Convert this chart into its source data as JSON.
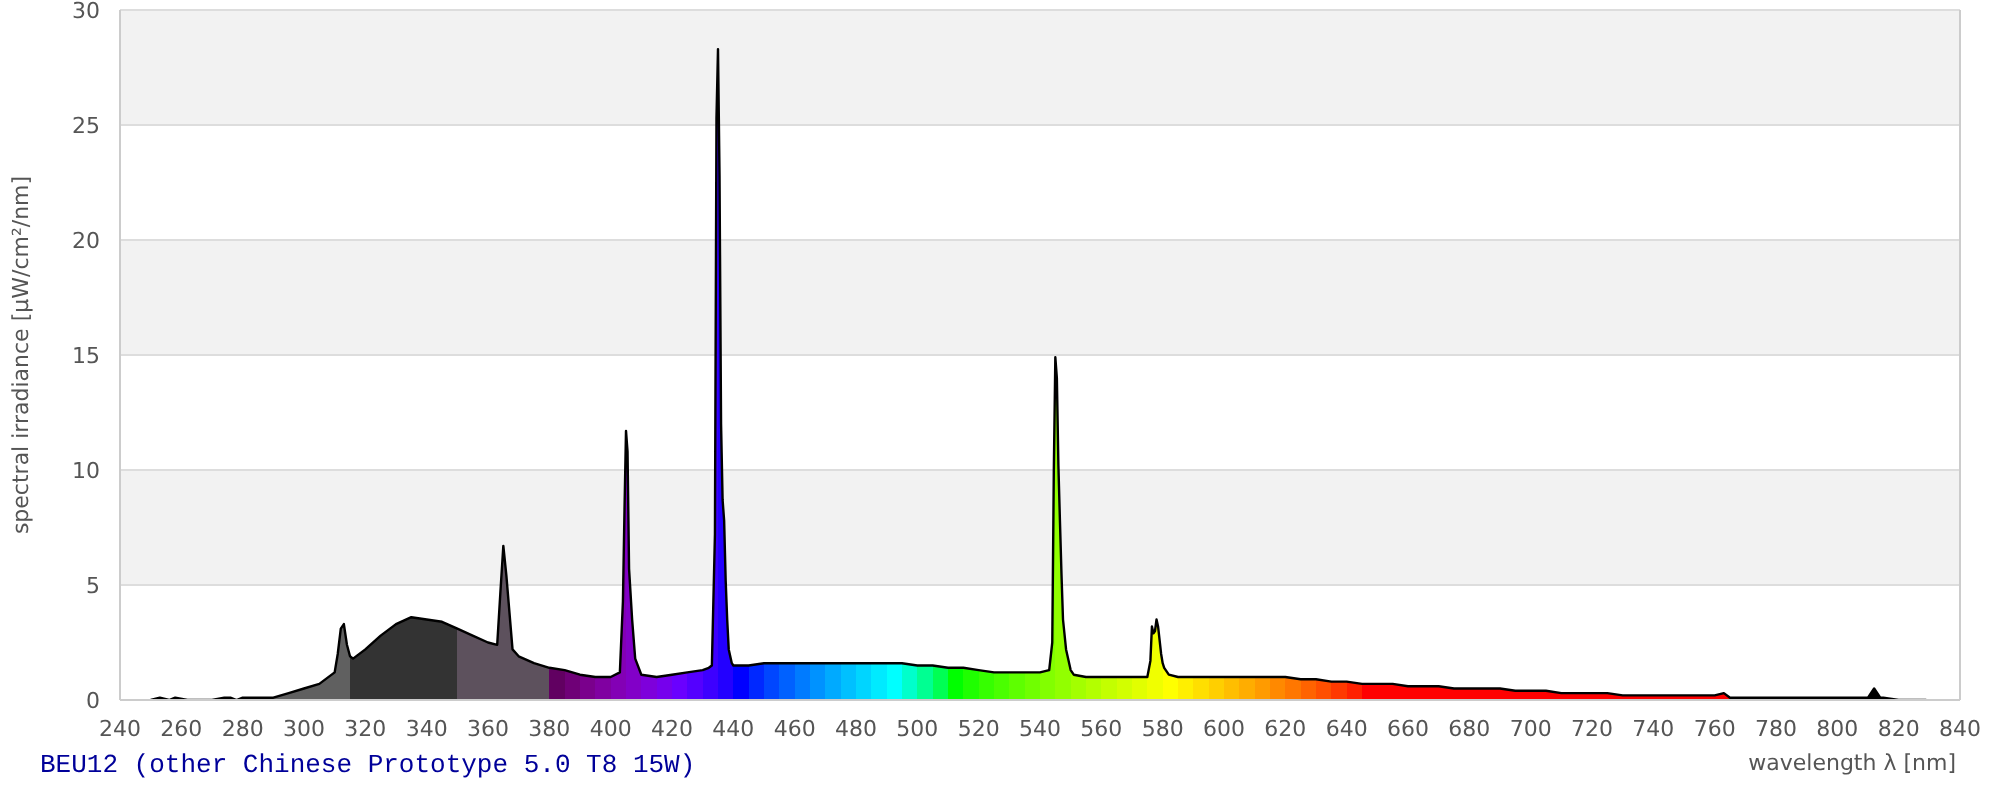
{
  "chart_data": {
    "type": "area",
    "title": "BEU12 (other Chinese Prototype 5.0 T8 15W)",
    "xlabel": "wavelength λ [nm]",
    "ylabel": "spectral irradiance [µW/cm²/nm]",
    "x": [
      250,
      253,
      256,
      258,
      262,
      270,
      274,
      276,
      278,
      280,
      283,
      286,
      290,
      295,
      300,
      305,
      310,
      311,
      312,
      313,
      314,
      315,
      316,
      320,
      325,
      330,
      335,
      340,
      345,
      350,
      355,
      360,
      363,
      364,
      365,
      366,
      367,
      368,
      370,
      375,
      380,
      385,
      390,
      395,
      400,
      403,
      404,
      404.5,
      405,
      405.5,
      406,
      407,
      408,
      410,
      415,
      420,
      425,
      430,
      432,
      433,
      434,
      434.5,
      435,
      435.5,
      436,
      436.5,
      437,
      437.5,
      438,
      438.5,
      439.5,
      440,
      441,
      445,
      450,
      455,
      460,
      465,
      470,
      475,
      480,
      485,
      490,
      495,
      500,
      505,
      510,
      515,
      520,
      525,
      530,
      535,
      540,
      543,
      544,
      544.5,
      545,
      545.5,
      546,
      546.5,
      547,
      547.5,
      548.5,
      550,
      551,
      555,
      560,
      565,
      570,
      575,
      576,
      576.5,
      577,
      577.5,
      578,
      578.5,
      579,
      579.5,
      580,
      580.5,
      582,
      585,
      590,
      595,
      600,
      605,
      610,
      615,
      620,
      625,
      630,
      635,
      640,
      645,
      650,
      655,
      660,
      665,
      670,
      675,
      680,
      685,
      690,
      695,
      700,
      705,
      710,
      715,
      720,
      725,
      730,
      735,
      740,
      745,
      750,
      755,
      760,
      763,
      765,
      770,
      775,
      780,
      785,
      790,
      795,
      800,
      805,
      810,
      812,
      814,
      815,
      820,
      825,
      829
    ],
    "values": [
      0,
      0.1,
      0,
      0.1,
      0,
      0,
      0.1,
      0.1,
      0,
      0.1,
      0.1,
      0.1,
      0.1,
      0.3,
      0.5,
      0.7,
      1.2,
      2.0,
      3.1,
      3.3,
      2.4,
      1.9,
      1.8,
      2.2,
      2.8,
      3.3,
      3.6,
      3.5,
      3.4,
      3.1,
      2.8,
      2.5,
      2.4,
      4.6,
      6.7,
      5.4,
      3.8,
      2.2,
      1.9,
      1.6,
      1.4,
      1.3,
      1.1,
      1.0,
      1.0,
      1.2,
      4.3,
      8.2,
      11.7,
      10.8,
      5.7,
      3.5,
      1.8,
      1.1,
      1.0,
      1.1,
      1.2,
      1.3,
      1.4,
      1.5,
      7.2,
      25.3,
      28.3,
      22.8,
      12.0,
      8.7,
      7.8,
      5.2,
      3.5,
      2.2,
      1.6,
      1.5,
      1.5,
      1.5,
      1.6,
      1.6,
      1.6,
      1.6,
      1.6,
      1.6,
      1.6,
      1.6,
      1.6,
      1.6,
      1.5,
      1.5,
      1.4,
      1.4,
      1.3,
      1.2,
      1.2,
      1.2,
      1.2,
      1.3,
      2.5,
      9.9,
      14.9,
      14.0,
      10.2,
      7.8,
      5.5,
      3.5,
      2.2,
      1.3,
      1.1,
      1.0,
      1.0,
      1.0,
      1.0,
      1.0,
      1.7,
      3.2,
      2.9,
      3.0,
      3.5,
      3.2,
      2.6,
      2.0,
      1.6,
      1.4,
      1.1,
      1.0,
      1.0,
      1.0,
      1.0,
      1.0,
      1.0,
      1.0,
      1.0,
      0.9,
      0.9,
      0.8,
      0.8,
      0.7,
      0.7,
      0.7,
      0.6,
      0.6,
      0.6,
      0.5,
      0.5,
      0.5,
      0.5,
      0.4,
      0.4,
      0.4,
      0.3,
      0.3,
      0.3,
      0.3,
      0.2,
      0.2,
      0.2,
      0.2,
      0.2,
      0.2,
      0.2,
      0.3,
      0.1,
      0.1,
      0.1,
      0.1,
      0.1,
      0.1,
      0.1,
      0.1,
      0.1,
      0.1,
      0.5,
      0.1,
      0.1,
      0,
      0,
      0
    ],
    "color": "#000000",
    "colors": [
      "#606060",
      "#606060",
      "#606060",
      "#606060",
      "#606060",
      "#606060",
      "#606060",
      "#606060",
      "#606060",
      "#606060",
      "#606060",
      "#606060",
      "#606060",
      "#606060",
      "#606060",
      "#606060",
      "#606060",
      "#606060",
      "#606060",
      "#606060",
      "#606060",
      "#333333",
      "#333333",
      "#333333",
      "#333333",
      "#333333",
      "#333333",
      "#333333",
      "#333333",
      "#5d515d",
      "#5d515d",
      "#5d515d",
      "#5d515d",
      "#5d515d",
      "#5d515d",
      "#5d515d",
      "#5d515d",
      "#5d515d",
      "#5d515d",
      "#5d515d",
      "#610061",
      "#6f0077",
      "#7a008c",
      "#8000a1",
      "#8300b5",
      "#8300b5",
      "#8300b5",
      "#8300b5",
      "#8200c8",
      "#8200c8",
      "#8200c8",
      "#8200c8",
      "#8200c8",
      "#7e00db",
      "#7600ed",
      "#6a00ff",
      "#5400ff",
      "#3d00ff",
      "#3d00ff",
      "#3d00ff",
      "#3d00ff",
      "#3d00ff",
      "#2300ff",
      "#2300ff",
      "#2300ff",
      "#2300ff",
      "#2300ff",
      "#2300ff",
      "#2300ff",
      "#2300ff",
      "#2300ff",
      "#0000ff",
      "#0000ff",
      "#0028ff",
      "#0046ff",
      "#0061ff",
      "#007bff",
      "#0092ff",
      "#00aaff",
      "#00c0ff",
      "#00d5ff",
      "#00eaff",
      "#00ffff",
      "#00ffcb",
      "#00ff92",
      "#00ff54",
      "#00ff00",
      "#1fff00",
      "#36ff00",
      "#4aff00",
      "#5eff00",
      "#70ff00",
      "#82ff00",
      "#82ff00",
      "#82ff00",
      "#82ff00",
      "#92ff00",
      "#92ff00",
      "#92ff00",
      "#92ff00",
      "#92ff00",
      "#92ff00",
      "#92ff00",
      "#a3ff00",
      "#a3ff00",
      "#b3ff00",
      "#c3ff00",
      "#d2ff00",
      "#e1ff00",
      "#f0ff00",
      "#f0ff00",
      "#f0ff00",
      "#f0ff00",
      "#f0ff00",
      "#f0ff00",
      "#f0ff00",
      "#f0ff00",
      "#f0ff00",
      "#ffff00",
      "#ffff00",
      "#ffff00",
      "#ffef00",
      "#ffdf00",
      "#ffcf00",
      "#ffbe00",
      "#ffad00",
      "#ff9b00",
      "#ff8900",
      "#ff7700",
      "#ff6300",
      "#ff4f00",
      "#ff3900",
      "#ff2100",
      "#ff0000",
      "#ff0000",
      "#ff0000",
      "#ff0000",
      "#ff0000",
      "#ff0000",
      "#ff0000",
      "#ff0000",
      "#ff0000",
      "#ff0000",
      "#ff0000",
      "#ff0000",
      "#ff0000",
      "#ff0000",
      "#ff0000",
      "#ff0000",
      "#ff0000",
      "#ff0000",
      "#ff0000",
      "#ff0000",
      "#ff0000",
      "#ff0000",
      "#ff0000",
      "#ff0000",
      "#ff0000",
      "#ff0000",
      "#ff0000",
      "#ff0000",
      "#000000",
      "#000000",
      "#000000",
      "#000000",
      "#000000",
      "#000000",
      "#000000",
      "#000000",
      "#000000",
      "#000000",
      "#000000",
      "#000000",
      "#000000"
    ],
    "xlim": [
      240,
      840
    ],
    "xticks": [
      240,
      260,
      280,
      300,
      320,
      340,
      360,
      380,
      400,
      420,
      440,
      460,
      480,
      500,
      520,
      540,
      560,
      580,
      600,
      620,
      640,
      660,
      680,
      700,
      720,
      740,
      760,
      780,
      800,
      820,
      840
    ],
    "ylim": [
      0,
      30
    ],
    "yticks": [
      0,
      5,
      10,
      15,
      20,
      25,
      30
    ],
    "grid": "y"
  }
}
